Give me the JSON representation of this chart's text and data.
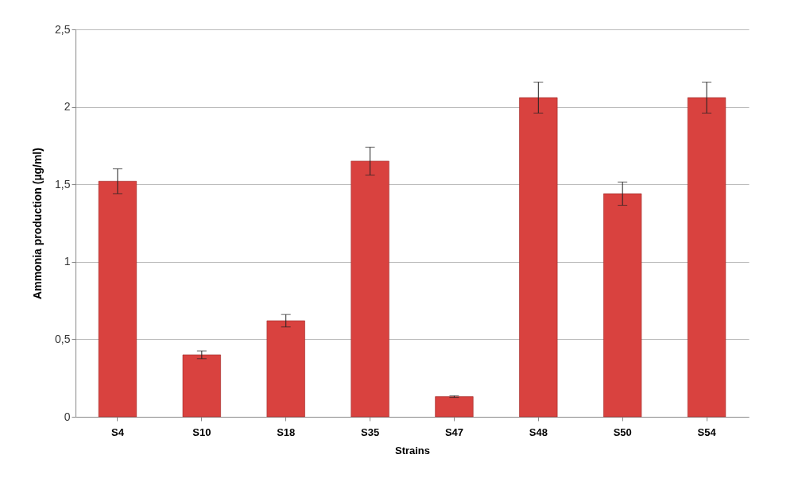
{
  "chart_data": {
    "type": "bar",
    "xlabel": "Strains",
    "ylabel": "Ammonia production (µg/ml)",
    "categories": [
      "S4",
      "S10",
      "S18",
      "S35",
      "S47",
      "S48",
      "S50",
      "S54"
    ],
    "values": [
      1.52,
      0.4,
      0.62,
      1.65,
      0.13,
      2.06,
      1.44,
      2.06
    ],
    "errors": [
      0.08,
      0.025,
      0.04,
      0.09,
      0.005,
      0.1,
      0.075,
      0.1
    ],
    "color": "#d9423f",
    "ylim": [
      0,
      2.5
    ],
    "yticks": [
      0,
      {
        "value": 0.5,
        "label": "0,5"
      },
      1,
      {
        "value": 1.5,
        "label": "1,5"
      },
      2,
      {
        "value": 2.5,
        "label": "2,5"
      }
    ],
    "grid": "y"
  }
}
